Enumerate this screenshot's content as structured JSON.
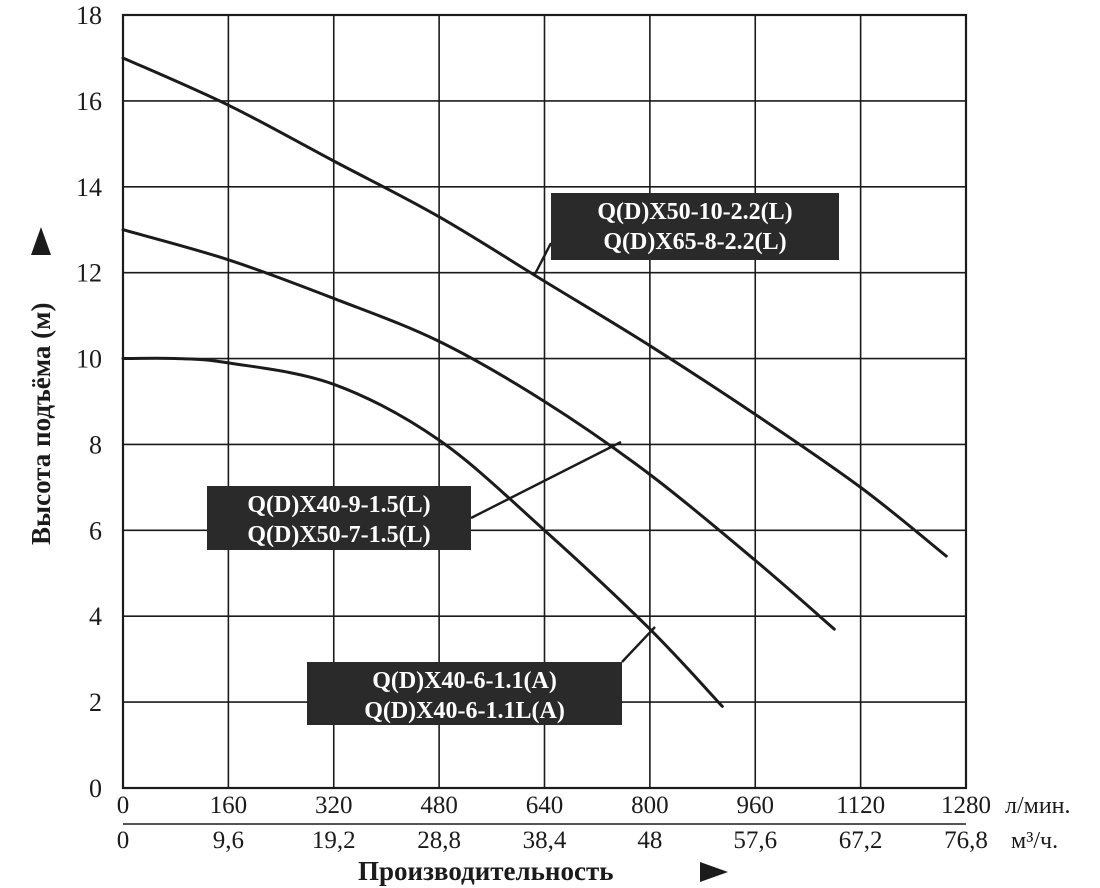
{
  "chart_data": {
    "type": "line",
    "ylabel": "Высота подъёма (м)",
    "xlabel": "Производительность",
    "ylim": [
      0,
      18
    ],
    "xlim": [
      0,
      1280
    ],
    "grid": true,
    "y_ticks": [
      "0",
      "2",
      "4",
      "6",
      "8",
      "10",
      "12",
      "14",
      "16",
      "18"
    ],
    "x_ticks_lpm": [
      "0",
      "160",
      "320",
      "480",
      "640",
      "800",
      "960",
      "1120",
      "1280"
    ],
    "x_unit_lpm": "л/мин.",
    "x_ticks_m3h": [
      "0",
      "9,6",
      "19,2",
      "28,8",
      "38,4",
      "48",
      "57,6",
      "67,2",
      "76,8"
    ],
    "x_unit_m3h": "м³/ч.",
    "series": [
      {
        "labels": [
          "Q(D)X50-10-2.2(L)",
          "Q(D)X65-8-2.2(L)"
        ],
        "x": [
          0,
          160,
          320,
          480,
          640,
          800,
          960,
          1120,
          1250
        ],
        "y": [
          17.0,
          15.9,
          14.6,
          13.3,
          11.8,
          10.3,
          8.7,
          7.0,
          5.4
        ]
      },
      {
        "labels": [
          "Q(D)X40-9-1.5(L)",
          "Q(D)X50-7-1.5(L)"
        ],
        "x": [
          0,
          160,
          320,
          480,
          640,
          800,
          960,
          1080
        ],
        "y": [
          13.0,
          12.3,
          11.4,
          10.4,
          9.0,
          7.3,
          5.3,
          3.7
        ]
      },
      {
        "labels": [
          "Q(D)X40-6-1.1(A)",
          "Q(D)X40-6-1.1L(A)"
        ],
        "x": [
          0,
          80,
          160,
          320,
          480,
          640,
          800,
          910
        ],
        "y": [
          10.0,
          10.0,
          9.9,
          9.4,
          8.1,
          6.0,
          3.7,
          1.9
        ]
      }
    ],
    "annotations": [
      {
        "series": 0,
        "lines": [
          "Q(D)X50-10-2.2(L)",
          "Q(D)X65-8-2.2(L)"
        ]
      },
      {
        "series": 1,
        "lines": [
          "Q(D)X40-9-1.5(L)",
          "Q(D)X50-7-1.5(L)"
        ]
      },
      {
        "series": 2,
        "lines": [
          "Q(D)X40-6-1.1(A)",
          "Q(D)X40-6-1.1L(A)"
        ]
      }
    ]
  }
}
